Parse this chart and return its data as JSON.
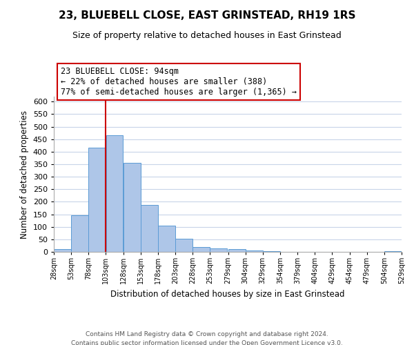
{
  "title": "23, BLUEBELL CLOSE, EAST GRINSTEAD, RH19 1RS",
  "subtitle": "Size of property relative to detached houses in East Grinstead",
  "xlabel": "Distribution of detached houses by size in East Grinstead",
  "ylabel": "Number of detached properties",
  "footer_line1": "Contains HM Land Registry data © Crown copyright and database right 2024.",
  "footer_line2": "Contains public sector information licensed under the Open Government Licence v3.0.",
  "bin_edges": [
    28,
    53,
    78,
    103,
    128,
    153,
    178,
    203,
    228,
    253,
    279,
    304,
    329,
    354,
    379,
    404,
    429,
    454,
    479,
    504,
    529
  ],
  "bin_labels": [
    "28sqm",
    "53sqm",
    "78sqm",
    "103sqm",
    "128sqm",
    "153sqm",
    "178sqm",
    "203sqm",
    "228sqm",
    "253sqm",
    "279sqm",
    "304sqm",
    "329sqm",
    "354sqm",
    "379sqm",
    "404sqm",
    "429sqm",
    "454sqm",
    "479sqm",
    "504sqm",
    "529sqm"
  ],
  "bar_heights": [
    10,
    145,
    415,
    465,
    355,
    188,
    105,
    53,
    18,
    15,
    10,
    5,
    2,
    0,
    0,
    0,
    0,
    0,
    0,
    2
  ],
  "bar_color": "#aec6e8",
  "bar_edge_color": "#5b9bd5",
  "ylim": [
    0,
    620
  ],
  "yticks": [
    0,
    50,
    100,
    150,
    200,
    250,
    300,
    350,
    400,
    450,
    500,
    550,
    600
  ],
  "property_line_x": 103,
  "property_line_color": "#cc0000",
  "annotation_title": "23 BLUEBELL CLOSE: 94sqm",
  "annotation_line1": "← 22% of detached houses are smaller (388)",
  "annotation_line2": "77% of semi-detached houses are larger (1,365) →",
  "annotation_box_color": "#ffffff",
  "annotation_box_edge_color": "#cc0000",
  "background_color": "#ffffff",
  "grid_color": "#c8d4e8"
}
